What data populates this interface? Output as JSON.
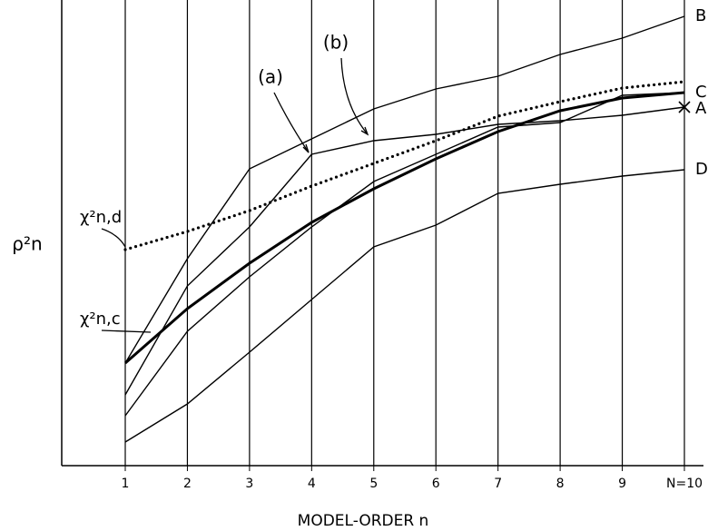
{
  "chart_data": {
    "type": "line",
    "x_label": "MODEL-ORDER n",
    "y_label": "ρ²n",
    "categories": [
      "1",
      "2",
      "3",
      "4",
      "5",
      "6",
      "7",
      "8",
      "9",
      "N=10"
    ],
    "ylim": [
      0,
      100
    ],
    "grid": true,
    "annotations": [
      "(a)",
      "(b)"
    ],
    "series": [
      {
        "name": "B",
        "color": "#000",
        "style": "solid",
        "values": [
          22.6,
          45.6,
          65.4,
          72,
          78.6,
          83,
          85.8,
          90.6,
          94.2,
          99
        ]
      },
      {
        "name": "C",
        "color": "#000",
        "style": "solid",
        "values": [
          11,
          29.6,
          41.6,
          52.6,
          62.6,
          68.6,
          74.6,
          75.6,
          81.6,
          82.2
        ]
      },
      {
        "name": "A",
        "color": "#000",
        "style": "solid",
        "values": [
          15.6,
          39.6,
          52.6,
          68.6,
          71.6,
          73,
          75.2,
          76,
          77.2,
          79
        ]
      },
      {
        "name": "D",
        "color": "#000",
        "style": "solid",
        "values": [
          5.2,
          13.6,
          25,
          36.6,
          48.2,
          53,
          60,
          62,
          63.8,
          65.2
        ]
      },
      {
        "name": "χ²n,d",
        "color": "#000",
        "style": "dotted",
        "values": [
          47.6,
          51.6,
          56.2,
          61.6,
          66.6,
          71.6,
          77,
          80.2,
          83.2,
          84.6
        ]
      },
      {
        "name": "χ²n,c",
        "color": "#000",
        "style": "thick",
        "values": [
          22.6,
          34.6,
          44.6,
          53.6,
          61,
          67.6,
          73.6,
          78.2,
          81,
          82.2
        ]
      }
    ]
  }
}
